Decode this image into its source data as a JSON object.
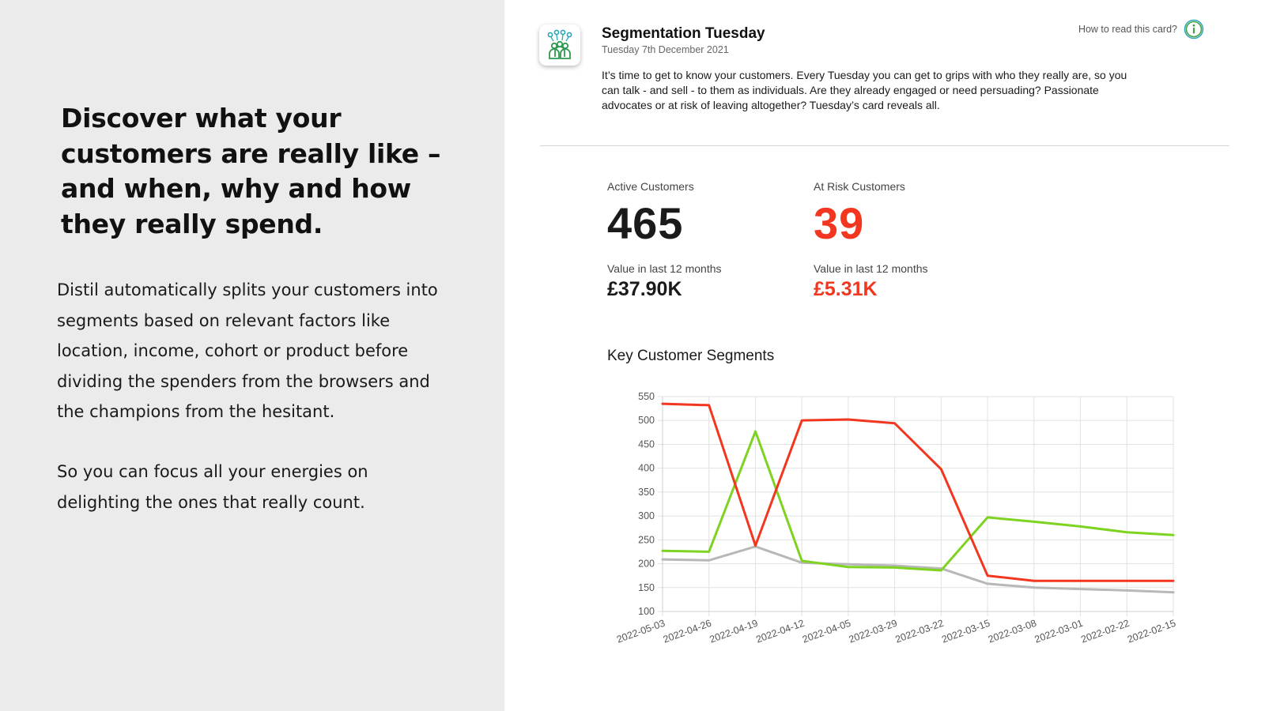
{
  "marketing": {
    "headline": "Discover what your customers are really like – and when, why and how they really spend.",
    "paragraph1": "Distil automatically splits your customers into segments based on relevant factors like location, income, cohort or product before dividing the spenders from the browsers and the champions from the hesitant.",
    "paragraph2": "So you can focus all your energies on delighting the ones that really count."
  },
  "card": {
    "icon": "customer-group-icon",
    "title": "Segmentation Tuesday",
    "date": "Tuesday 7th December 2021",
    "description": "It’s time to get to know your customers. Every Tuesday you can get to grips with who they really are, so you can talk - and sell - to them as individuals. Are they already engaged or need persuading? Passionate advocates or at risk of leaving altogether? Tuesday’s card reveals all.",
    "help_label": "How to read this card?",
    "help_icon": "info-icon"
  },
  "metrics": {
    "active": {
      "label": "Active Customers",
      "count": "465",
      "value_label": "Value in last 12 months",
      "value": "£37.90K",
      "color": "#1a1a1a"
    },
    "at_risk": {
      "label": "At Risk Customers",
      "count": "39",
      "value_label": "Value in last 12 months",
      "value": "£5.31K",
      "color": "#f2361f"
    }
  },
  "chart_title": "Key Customer Segments",
  "chart_data": {
    "type": "line",
    "x": [
      "2022-05-03",
      "2022-04-26",
      "2022-04-19",
      "2022-04-12",
      "2022-04-05",
      "2022-03-29",
      "2022-03-22",
      "2022-03-15",
      "2022-03-08",
      "2022-03-01",
      "2022-02-22",
      "2022-02-15"
    ],
    "ylim": [
      100,
      550
    ],
    "yticks": [
      550,
      500,
      450,
      400,
      350,
      300,
      250,
      200,
      150,
      100
    ],
    "grid": true,
    "series": [
      {
        "color": "#f2361f",
        "values": [
          535,
          532,
          238,
          500,
          502,
          494,
          398,
          175,
          164,
          164,
          164,
          164
        ]
      },
      {
        "color": "#7ed321",
        "values": [
          227,
          225,
          477,
          206,
          193,
          192,
          186,
          297,
          288,
          278,
          266,
          260
        ]
      },
      {
        "color": "#b8b8b8",
        "values": [
          209,
          207,
          236,
          202,
          199,
          196,
          190,
          158,
          150,
          147,
          144,
          140
        ]
      }
    ]
  }
}
